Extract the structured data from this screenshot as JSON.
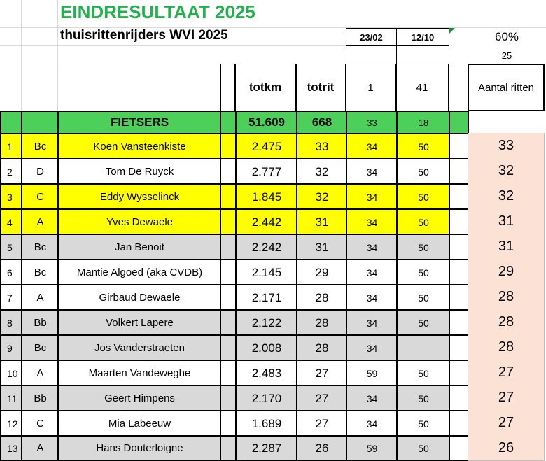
{
  "sheet": {
    "title": "EINDRESULTAAT 2025",
    "subtitle": "thuisrittenrijders WVI 2025",
    "dates": [
      "23/02",
      "12/10"
    ],
    "percent": "60%",
    "threshold": "25",
    "col_totkm": "totkm",
    "col_totrit": "totrit",
    "col_one": "1",
    "col_fortyone": "41",
    "col_aantal": "Aantal ritten",
    "summary": {
      "label": "FIETSERS",
      "totkm": "51.609",
      "totrit": "668",
      "c1": "33",
      "c2": "18"
    },
    "rows": [
      {
        "rank": "1",
        "cat": "Bc",
        "name": "Koen Vansteenkiste",
        "km": "2.475",
        "rides": "33",
        "c1": "34",
        "c2": "50",
        "aantal": "33",
        "color": "yellow"
      },
      {
        "rank": "2",
        "cat": "D",
        "name": "Tom De Ruyck",
        "km": "2.777",
        "rides": "32",
        "c1": "34",
        "c2": "50",
        "aantal": "32",
        "color": "white"
      },
      {
        "rank": "3",
        "cat": "C",
        "name": "Eddy Wysselinck",
        "km": "1.845",
        "rides": "32",
        "c1": "34",
        "c2": "50",
        "aantal": "32",
        "color": "yellow"
      },
      {
        "rank": "4",
        "cat": "A",
        "name": "Yves Dewaele",
        "km": "2.442",
        "rides": "31",
        "c1": "34",
        "c2": "50",
        "aantal": "31",
        "color": "yellow"
      },
      {
        "rank": "5",
        "cat": "Bc",
        "name": "Jan Benoit",
        "km": "2.242",
        "rides": "31",
        "c1": "34",
        "c2": "50",
        "aantal": "31",
        "color": "grey"
      },
      {
        "rank": "6",
        "cat": "Bc",
        "name": "Mantie Algoed (aka CVDB)",
        "km": "2.145",
        "rides": "29",
        "c1": "34",
        "c2": "50",
        "aantal": "29",
        "color": "white"
      },
      {
        "rank": "7",
        "cat": "A",
        "name": "Girbaud Dewaele",
        "km": "2.171",
        "rides": "28",
        "c1": "34",
        "c2": "50",
        "aantal": "28",
        "color": "white"
      },
      {
        "rank": "8",
        "cat": "Bb",
        "name": "Volkert Lapere",
        "km": "2.122",
        "rides": "28",
        "c1": "34",
        "c2": "50",
        "aantal": "28",
        "color": "grey"
      },
      {
        "rank": "9",
        "cat": "Bc",
        "name": "Jos Vanderstraeten",
        "km": "2.008",
        "rides": "28",
        "c1": "34",
        "c2": "",
        "aantal": "28",
        "color": "grey"
      },
      {
        "rank": "10",
        "cat": "A",
        "name": "Maarten Vandeweghe",
        "km": "2.483",
        "rides": "27",
        "c1": "59",
        "c2": "50",
        "aantal": "27",
        "color": "white"
      },
      {
        "rank": "11",
        "cat": "Bb",
        "name": "Geert Himpens",
        "km": "2.170",
        "rides": "27",
        "c1": "34",
        "c2": "50",
        "aantal": "27",
        "color": "grey"
      },
      {
        "rank": "12",
        "cat": "C",
        "name": "Mia Labeeuw",
        "km": "1.689",
        "rides": "27",
        "c1": "34",
        "c2": "50",
        "aantal": "27",
        "color": "white"
      },
      {
        "rank": "13",
        "cat": "A",
        "name": "Hans Douterloigne",
        "km": "2.287",
        "rides": "26",
        "c1": "59",
        "c2": "50",
        "aantal": "26",
        "color": "grey"
      }
    ]
  }
}
